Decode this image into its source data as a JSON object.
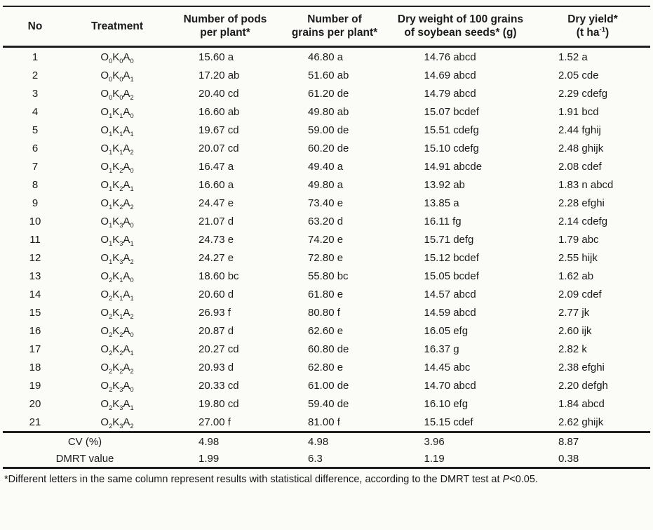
{
  "table": {
    "columns": [
      {
        "key": "no",
        "label_lines": [
          "No"
        ]
      },
      {
        "key": "treatment",
        "label_lines": [
          "Treatment"
        ]
      },
      {
        "key": "pods",
        "label_lines": [
          "Number of pods",
          "per plant*"
        ]
      },
      {
        "key": "grains",
        "label_lines": [
          "Number of",
          "grains per plant*"
        ]
      },
      {
        "key": "weight",
        "label_lines": [
          "Dry weight of 100 grains",
          "of soybean seeds* (g)"
        ]
      },
      {
        "key": "yield",
        "label_lines": [
          "Dry yield*",
          "(t ha^-1)"
        ]
      }
    ],
    "rows": [
      {
        "no": "1",
        "treatment": "O0K0A0",
        "pods": "15.60 a",
        "grains": "46.80 a",
        "weight": "14.76 abcd",
        "yield": "1.52 a"
      },
      {
        "no": "2",
        "treatment": "O0K0A1",
        "pods": "17.20 ab",
        "grains": "51.60 ab",
        "weight": "14.69 abcd",
        "yield": "2.05 cde"
      },
      {
        "no": "3",
        "treatment": "O0K0A2",
        "pods": "20.40 cd",
        "grains": "61.20 de",
        "weight": "14.79 abcd",
        "yield": "2.29 cdefg"
      },
      {
        "no": "4",
        "treatment": "O1K1A0",
        "pods": "16.60 ab",
        "grains": "49.80 ab",
        "weight": "15.07 bcdef",
        "yield": "1.91 bcd"
      },
      {
        "no": "5",
        "treatment": "O1K1A1",
        "pods": "19.67 cd",
        "grains": "59.00 de",
        "weight": "15.51 cdefg",
        "yield": "2.44 fghij"
      },
      {
        "no": "6",
        "treatment": "O1K1A2",
        "pods": "20.07 cd",
        "grains": "60.20 de",
        "weight": "15.10 cdefg",
        "yield": "2.48 ghijk"
      },
      {
        "no": "7",
        "treatment": "O1K2A0",
        "pods": "16.47 a",
        "grains": "49.40 a",
        "weight": "14.91 abcde",
        "yield": "2.08 cdef"
      },
      {
        "no": "8",
        "treatment": "O1K2A1",
        "pods": "16.60 a",
        "grains": "49.80 a",
        "weight": "13.92 ab",
        "yield": "1.83 n abcd"
      },
      {
        "no": "9",
        "treatment": "O1K2A2",
        "pods": "24.47 e",
        "grains": "73.40 e",
        "weight": "13.85 a",
        "yield": "2.28 efghi"
      },
      {
        "no": "10",
        "treatment": "O1K3A0",
        "pods": "21.07 d",
        "grains": "63.20 d",
        "weight": "16.11 fg",
        "yield": "2.14 cdefg"
      },
      {
        "no": "11",
        "treatment": "O1K3A1",
        "pods": "24.73 e",
        "grains": "74.20 e",
        "weight": "15.71 defg",
        "yield": "1.79 abc"
      },
      {
        "no": "12",
        "treatment": "O1K3A2",
        "pods": "24.27 e",
        "grains": "72.80 e",
        "weight": "15.12 bcdef",
        "yield": "2.55 hijk"
      },
      {
        "no": "13",
        "treatment": "O2K1A0",
        "pods": "18.60 bc",
        "grains": "55.80 bc",
        "weight": "15.05 bcdef",
        "yield": "1.62 ab"
      },
      {
        "no": "14",
        "treatment": "O2K1A1",
        "pods": "20.60 d",
        "grains": "61.80 e",
        "weight": "14.57 abcd",
        "yield": "2.09 cdef"
      },
      {
        "no": "15",
        "treatment": "O2K1A2",
        "pods": "26.93 f",
        "grains": "80.80 f",
        "weight": "14.59 abcd",
        "yield": "2.77 jk"
      },
      {
        "no": "16",
        "treatment": "O2K2A0",
        "pods": "20.87 d",
        "grains": "62.60 e",
        "weight": "16.05 efg",
        "yield": "2.60 ijk"
      },
      {
        "no": "17",
        "treatment": "O2K2A1",
        "pods": "20.27 cd",
        "grains": "60.80 de",
        "weight": "16.37 g",
        "yield": "2.82 k"
      },
      {
        "no": "18",
        "treatment": "O2K2A2",
        "pods": "20.93 d",
        "grains": "62.80 e",
        "weight": "14.45 abc",
        "yield": "2.38 efghi"
      },
      {
        "no": "19",
        "treatment": "O2K3A0",
        "pods": "20.33 cd",
        "grains": "61.00 de",
        "weight": "14.70 abcd",
        "yield": "2.20 defgh"
      },
      {
        "no": "20",
        "treatment": "O2K3A1",
        "pods": "19.80 cd",
        "grains": "59.40 de",
        "weight": "16.10 efg",
        "yield": "1.84 abcd"
      },
      {
        "no": "21",
        "treatment": "O2K3A2",
        "pods": "27.00 f",
        "grains": "81.00 f",
        "weight": "15.15 cdef",
        "yield": "2.62 ghijk"
      }
    ],
    "summary_rows": [
      {
        "label": "CV (%)",
        "pods": "4.98",
        "grains": "4.98",
        "weight": "3.96",
        "yield": "8.87"
      },
      {
        "label": "DMRT value",
        "pods": "1.99",
        "grains": "6.3",
        "weight": "1.19",
        "yield": "0.38"
      }
    ]
  },
  "footnote": {
    "text_before": "*Different letters in the same column represent results with statistical difference, according to the DMRT test at ",
    "italic": "P",
    "text_after": "<0.05."
  }
}
